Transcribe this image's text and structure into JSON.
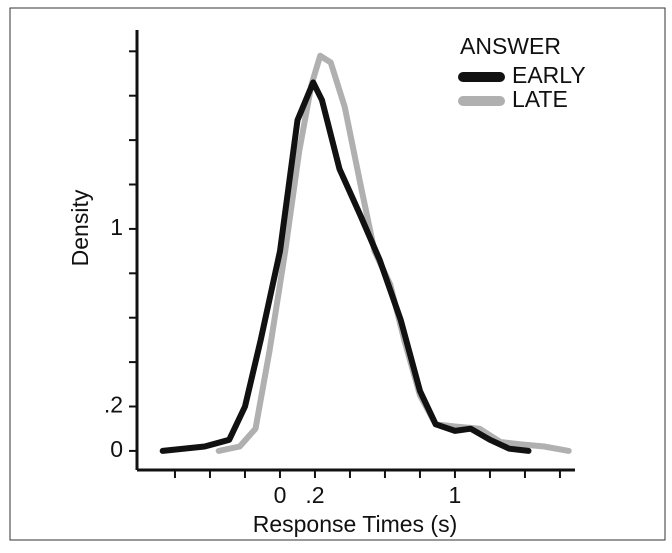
{
  "chart_data": {
    "type": "line",
    "x_label": "Response Times (s)",
    "y_label": "Density",
    "legend_title": "ANSWER",
    "legend": "top-right",
    "xlim": [
      -0.817,
      1.686
    ],
    "ylim": [
      -0.086,
      1.896
    ],
    "xticks": [
      0,
      {
        "value": 0.2,
        "label": ".2"
      },
      1
    ],
    "minor_xticks": [
      -0.6,
      -0.4,
      -0.2,
      0.4,
      0.6,
      0.8,
      1.2,
      1.4,
      1.6
    ],
    "yticks": [
      0,
      {
        "value": 0.2,
        "label": ".2"
      },
      1
    ],
    "minor_yticks": [
      0.4,
      0.6,
      0.8,
      1.2,
      1.4,
      1.6,
      1.8
    ],
    "series": [
      {
        "name": "EARLY",
        "color": "#111111",
        "x": [
          -0.67,
          -0.43,
          -0.29,
          -0.2,
          -0.11,
          0,
          0.1,
          0.19,
          0.24,
          0.34,
          0.46,
          0.57,
          0.69,
          0.8,
          0.89,
          1,
          1.09,
          1.2,
          1.31,
          1.42
        ],
        "values": [
          0,
          0.02,
          0.05,
          0.2,
          0.5,
          0.9,
          1.49,
          1.66,
          1.58,
          1.27,
          1.06,
          0.86,
          0.59,
          0.27,
          0.12,
          0.09,
          0.1,
          0.05,
          0.01,
          0
        ]
      },
      {
        "name": "LATE",
        "color": "#b0b0b0",
        "x": [
          -0.35,
          -0.23,
          -0.14,
          -0.06,
          0.03,
          0.11,
          0.18,
          0.23,
          0.29,
          0.37,
          0.46,
          0.54,
          0.63,
          0.71,
          0.8,
          0.89,
          1,
          1.14,
          1.26,
          1.37,
          1.51,
          1.65
        ],
        "values": [
          0,
          0.02,
          0.1,
          0.45,
          0.9,
          1.35,
          1.65,
          1.78,
          1.75,
          1.55,
          1.2,
          0.9,
          0.75,
          0.5,
          0.25,
          0.12,
          0.11,
          0.1,
          0.04,
          0.03,
          0.02,
          0
        ]
      }
    ]
  }
}
